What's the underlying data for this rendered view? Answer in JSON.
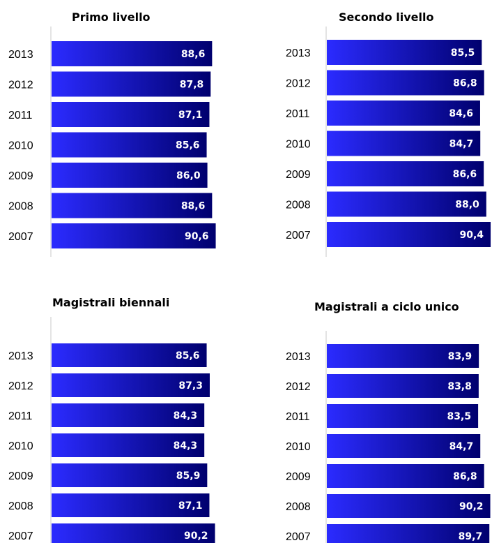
{
  "chart_data": [
    {
      "type": "bar",
      "orientation": "horizontal",
      "title": "Primo livello",
      "categories": [
        "2013",
        "2012",
        "2011",
        "2010",
        "2009",
        "2008",
        "2007"
      ],
      "values": [
        88.6,
        87.8,
        87.1,
        85.6,
        86.0,
        88.6,
        90.6
      ],
      "value_labels": [
        "88,6",
        "87,8",
        "87,1",
        "85,6",
        "86,0",
        "88,6",
        "90,6"
      ],
      "xlim": [
        0,
        100
      ],
      "grid": false,
      "legend": "none"
    },
    {
      "type": "bar",
      "orientation": "horizontal",
      "title": "Secondo livello",
      "categories": [
        "2013",
        "2012",
        "2011",
        "2010",
        "2009",
        "2008",
        "2007"
      ],
      "values": [
        85.5,
        86.8,
        84.6,
        84.7,
        86.6,
        88.0,
        90.4
      ],
      "value_labels": [
        "85,5",
        "86,8",
        "84,6",
        "84,7",
        "86,6",
        "88,0",
        "90,4"
      ],
      "xlim": [
        0,
        100
      ],
      "grid": false,
      "legend": "none"
    },
    {
      "type": "bar",
      "orientation": "horizontal",
      "title": "Magistrali biennali",
      "categories": [
        "2013",
        "2012",
        "2011",
        "2010",
        "2009",
        "2008",
        "2007"
      ],
      "values": [
        85.6,
        87.3,
        84.3,
        84.3,
        85.9,
        87.1,
        90.2
      ],
      "value_labels": [
        "85,6",
        "87,3",
        "84,3",
        "84,3",
        "85,9",
        "87,1",
        "90,2"
      ],
      "xlim": [
        0,
        100
      ],
      "grid": false,
      "legend": "none"
    },
    {
      "type": "bar",
      "orientation": "horizontal",
      "title": "Magistrali a ciclo unico",
      "categories": [
        "2013",
        "2012",
        "2011",
        "2010",
        "2009",
        "2008",
        "2007"
      ],
      "values": [
        83.9,
        83.8,
        83.5,
        84.7,
        86.8,
        90.2,
        89.7
      ],
      "value_labels": [
        "83,9",
        "83,8",
        "83,5",
        "84,7",
        "86,8",
        "90,2",
        "89,7"
      ],
      "xlim": [
        0,
        100
      ],
      "grid": false,
      "legend": "none"
    }
  ],
  "colors": {
    "bar_start": "#2b2bff",
    "bar_end": "#00006e",
    "bar_label": "#ffffff",
    "axis": "#c8c8c8"
  }
}
